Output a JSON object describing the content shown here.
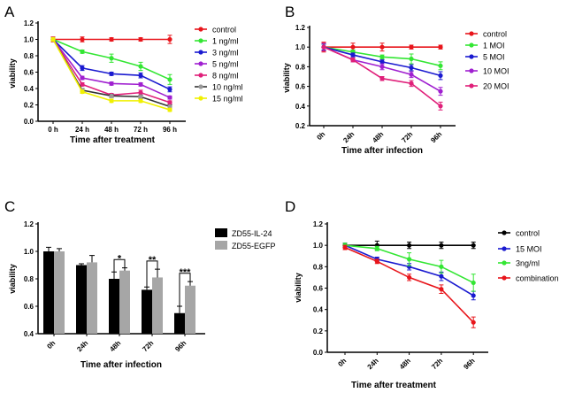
{
  "chart_data": [
    {
      "panel": "A",
      "type": "line",
      "xlabel": "Time after treatment",
      "ylabel": "viability",
      "categories": [
        "0 h",
        "24 h",
        "48 h",
        "72 h",
        "96 h"
      ],
      "ylim": [
        0,
        1.2
      ],
      "yticks": [
        "0.0",
        "0.2",
        "0.4",
        "0.6",
        "0.8",
        "1.0",
        "1.2"
      ],
      "rotate_xticks": false,
      "legend": "right",
      "series": [
        {
          "name": "control",
          "color": "#e8151b",
          "values": [
            1,
            1,
            1,
            1,
            1
          ],
          "err": [
            0.03,
            0.03,
            0.02,
            0.02,
            0.05
          ]
        },
        {
          "name": "1 ng/ml",
          "color": "#33e633",
          "values": [
            1,
            0.85,
            0.77,
            0.67,
            0.51
          ],
          "err": [
            0.02,
            0.02,
            0.05,
            0.05,
            0.06
          ]
        },
        {
          "name": "3 ng/ml",
          "color": "#1a1ad0",
          "values": [
            1,
            0.65,
            0.58,
            0.56,
            0.39
          ],
          "err": [
            0.02,
            0.03,
            0.02,
            0.03,
            0.03
          ]
        },
        {
          "name": "5 ng/ml",
          "color": "#a020d0",
          "values": [
            1,
            0.53,
            0.46,
            0.45,
            0.29
          ],
          "err": [
            0.02,
            0.02,
            0.02,
            0.02,
            0.02
          ]
        },
        {
          "name": "8 ng/ml",
          "color": "#e0207a",
          "values": [
            1,
            0.45,
            0.32,
            0.35,
            0.23
          ],
          "err": [
            0.02,
            0.02,
            0.02,
            0.03,
            0.02
          ]
        },
        {
          "name": "10 ng/ml",
          "color": "#333333",
          "marker": "#999999",
          "values": [
            1,
            0.38,
            0.31,
            0.3,
            0.18
          ],
          "err": [
            0.02,
            0.02,
            0.02,
            0.02,
            0.02
          ]
        },
        {
          "name": "15 ng/ml",
          "color": "#f0f000",
          "values": [
            1,
            0.36,
            0.25,
            0.25,
            0.14
          ],
          "err": [
            0.02,
            0.02,
            0.02,
            0.02,
            0.02
          ]
        }
      ]
    },
    {
      "panel": "B",
      "type": "line",
      "xlabel": "Time after infection",
      "ylabel": "viability",
      "categories": [
        "0h",
        "24h",
        "48h",
        "72h",
        "96h"
      ],
      "ylim": [
        0.2,
        1.2
      ],
      "yticks": [
        "0.2",
        "0.4",
        "0.6",
        "0.8",
        "1.0",
        "1.2"
      ],
      "rotate_xticks": true,
      "legend": "right",
      "series": [
        {
          "name": "control",
          "color": "#e8151b",
          "values": [
            1,
            1,
            1,
            1,
            1
          ],
          "err": [
            0.05,
            0.04,
            0.04,
            0.02,
            0.02
          ]
        },
        {
          "name": "1 MOI",
          "color": "#33e633",
          "values": [
            1,
            0.95,
            0.9,
            0.88,
            0.81
          ],
          "err": [
            0.03,
            0.02,
            0.02,
            0.05,
            0.04
          ]
        },
        {
          "name": "5 MOI",
          "color": "#1a1ad0",
          "values": [
            1,
            0.92,
            0.85,
            0.79,
            0.71
          ],
          "err": [
            0.03,
            0.02,
            0.02,
            0.03,
            0.04
          ]
        },
        {
          "name": "10 MOI",
          "color": "#a020d0",
          "values": [
            1,
            0.87,
            0.8,
            0.72,
            0.55
          ],
          "err": [
            0.04,
            0.02,
            0.03,
            0.03,
            0.04
          ]
        },
        {
          "name": "20 MOI",
          "color": "#e0207a",
          "values": [
            1,
            0.87,
            0.68,
            0.63,
            0.4
          ],
          "err": [
            0.04,
            0.02,
            0.02,
            0.03,
            0.04
          ]
        }
      ]
    },
    {
      "panel": "C",
      "type": "bar",
      "xlabel": "Time after infection",
      "ylabel": "viability",
      "categories": [
        "0h",
        "24h",
        "48h",
        "72h",
        "96h"
      ],
      "ylim": [
        0.4,
        1.2
      ],
      "yticks": [
        "0.4",
        "0.6",
        "0.8",
        "1.0",
        "1.2"
      ],
      "rotate_xticks": true,
      "legend": "right",
      "series": [
        {
          "name": "ZD55-IL-24",
          "color": "#000000",
          "values": [
            1.0,
            0.9,
            0.8,
            0.72,
            0.55
          ],
          "err": [
            0.03,
            0.01,
            0.05,
            0.02,
            0.05
          ]
        },
        {
          "name": "ZD55-EGFP",
          "color": "#a6a6a6",
          "values": [
            1.0,
            0.92,
            0.86,
            0.81,
            0.75
          ],
          "err": [
            0.02,
            0.05,
            0.02,
            0.06,
            0.03
          ]
        }
      ],
      "significance": [
        {
          "category": "48h",
          "label": "*"
        },
        {
          "category": "72h",
          "label": "**"
        },
        {
          "category": "96h",
          "label": "***"
        }
      ]
    },
    {
      "panel": "D",
      "type": "line",
      "xlabel": "Time after treatment",
      "ylabel": "viability",
      "categories": [
        "0h",
        "24h",
        "48h",
        "72h",
        "96h"
      ],
      "ylim": [
        0,
        1.2
      ],
      "yticks": [
        "0.0",
        "0.2",
        "0.4",
        "0.6",
        "0.8",
        "1.0",
        "1.2"
      ],
      "rotate_xticks": true,
      "legend": "right",
      "series": [
        {
          "name": "control",
          "color": "#000000",
          "values": [
            1,
            1,
            1,
            1,
            1
          ],
          "err": [
            0.02,
            0.04,
            0.03,
            0.03,
            0.03
          ]
        },
        {
          "name": "15 MOI",
          "color": "#1a1ad0",
          "values": [
            1,
            0.87,
            0.8,
            0.71,
            0.53
          ],
          "err": [
            0.02,
            0.02,
            0.03,
            0.04,
            0.04
          ]
        },
        {
          "name": "3ng/ml",
          "color": "#33e633",
          "values": [
            1,
            0.97,
            0.87,
            0.8,
            0.65
          ],
          "err": [
            0.02,
            0.02,
            0.06,
            0.06,
            0.08
          ]
        },
        {
          "name": "combination",
          "color": "#e8151b",
          "values": [
            0.98,
            0.85,
            0.7,
            0.59,
            0.28
          ],
          "err": [
            0.02,
            0.02,
            0.03,
            0.04,
            0.05
          ]
        }
      ]
    }
  ]
}
